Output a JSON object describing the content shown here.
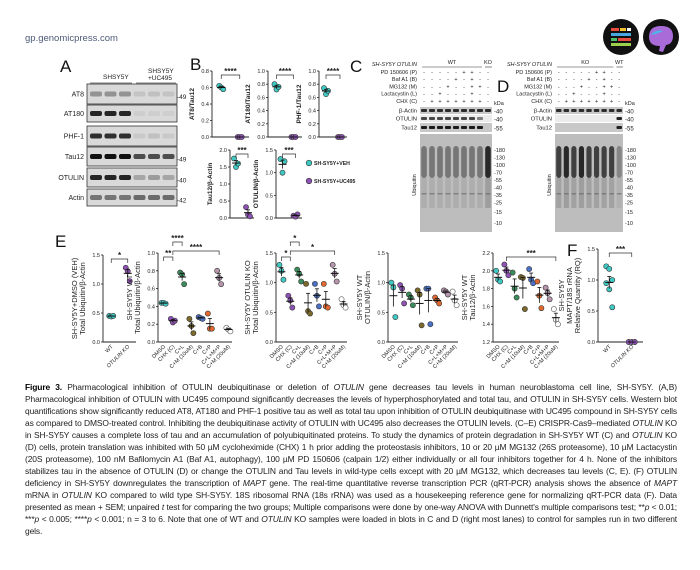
{
  "header": {
    "site": "gp.genomicpress.com",
    "logos": [
      "journal-logo-icon",
      "brain-logo-icon"
    ]
  },
  "colors": {
    "veh": "#3fc9c3",
    "uc495": "#8e52b5",
    "groups": [
      "#3fc9c3",
      "#8e52b5",
      "#3b8d5c",
      "#7b6a2b",
      "#4b70c4",
      "#e2682f",
      "#b695ad",
      "#ffffff"
    ]
  },
  "panel_a": {
    "label": "A",
    "groups": [
      "SHSY5Y",
      "SHSY5Y\n+UC495"
    ],
    "rows": [
      {
        "name": "AT8",
        "mw": "49"
      },
      {
        "name": "AT180",
        "mw": ""
      },
      {
        "name": "PHF-1",
        "mw": ""
      },
      {
        "name": "Tau12",
        "mw": "49"
      },
      {
        "name": "OTULIN",
        "mw": "40"
      },
      {
        "name": "Actin",
        "mw": "42"
      }
    ]
  },
  "panel_c": {
    "label": "C",
    "line": "SH-SY5Y OTULIN",
    "group_main": "WT",
    "group_ctrl": "KO",
    "treatments": [
      {
        "name": "PD 150606 (P)",
        "signs": [
          "-",
          "-",
          "-",
          "-",
          "-",
          "+",
          "+",
          "-",
          "-"
        ]
      },
      {
        "name": "Baf A1 (B)",
        "signs": [
          "-",
          "-",
          "-",
          "-",
          "+",
          "-",
          "+",
          "-",
          "-"
        ]
      },
      {
        "name": "MG132 (M)",
        "signs": [
          "-",
          "-",
          "-",
          "+",
          "-",
          "-",
          "+",
          "+",
          "-"
        ]
      },
      {
        "name": "Lactacystin (L)",
        "signs": [
          "-",
          "-",
          "+",
          "-",
          "-",
          "-",
          "+",
          "-",
          "-"
        ]
      },
      {
        "name": "CHX (C)",
        "signs": [
          "-",
          "+",
          "+",
          "+",
          "+",
          "+",
          "+",
          "+",
          "-"
        ]
      }
    ],
    "kda": "kDa",
    "rows": [
      {
        "name": "β-Actin",
        "mw": "40"
      },
      {
        "name": "OTULIN",
        "mw": "40"
      },
      {
        "name": "Tau12",
        "mw": "55"
      }
    ],
    "ubiquitin_label": "Ubiquitin",
    "ubiquitin_mw": [
      "180",
      "130",
      "100",
      "70",
      "55",
      "40",
      "35",
      "25",
      "15",
      "10"
    ]
  },
  "panel_d": {
    "label": "D",
    "line": "SH-SY5Y OTULIN",
    "group_main": "KO",
    "group_ctrl": "WT",
    "treatments": [
      {
        "name": "PD 150606 (P)",
        "signs": [
          "-",
          "-",
          "-",
          "-",
          "-",
          "+",
          "+",
          "-",
          "-"
        ]
      },
      {
        "name": "Baf A1 (B)",
        "signs": [
          "-",
          "-",
          "-",
          "-",
          "+",
          "-",
          "+",
          "-",
          "-"
        ]
      },
      {
        "name": "MG132 (M)",
        "signs": [
          "-",
          "-",
          "-",
          "+",
          "-",
          "-",
          "+",
          "+",
          "-"
        ]
      },
      {
        "name": "Lactacystin (L)",
        "signs": [
          "-",
          "-",
          "+",
          "-",
          "-",
          "-",
          "+",
          "-",
          "-"
        ]
      },
      {
        "name": "CHX (C)",
        "signs": [
          "-",
          "+",
          "+",
          "+",
          "+",
          "+",
          "+",
          "+",
          "-"
        ]
      }
    ],
    "kda": "kDa",
    "rows": [
      {
        "name": "β-Actin",
        "mw": "40"
      },
      {
        "name": "OTULIN",
        "mw": "40"
      },
      {
        "name": "Tau12",
        "mw": "55"
      }
    ],
    "ubiquitin_label": "Ubiquitin",
    "ubiquitin_mw": [
      "180",
      "130",
      "100",
      "70",
      "55",
      "40",
      "35",
      "25",
      "15",
      "10"
    ]
  },
  "panel_labels": {
    "B": "B",
    "E": "E",
    "F": "F"
  },
  "legend_b": [
    {
      "label": "SH-SY5Y+VEH",
      "color": "#3fc9c3"
    },
    {
      "label": "SH-SY5Y+UC495",
      "color": "#8e52b5"
    }
  ],
  "chart_data": [
    {
      "id": "B1",
      "type": "scatter",
      "ylabel": [
        "AT8/Tau12"
      ],
      "ylim": [
        0,
        0.8
      ],
      "yticks": [
        "0.0",
        "0.2",
        "0.4",
        "0.6",
        "0.8"
      ],
      "categories": [],
      "groups": [
        {
          "points": [
            0.62,
            0.6,
            0.58
          ],
          "color": 0
        },
        {
          "points": [
            0,
            0,
            0
          ],
          "color": 1
        }
      ],
      "sig": [
        {
          "a": 0,
          "b": 1,
          "text": "****"
        }
      ]
    },
    {
      "id": "B2",
      "type": "scatter",
      "ylabel": [
        "AT180/Tau12"
      ],
      "ylim": [
        0,
        1.0
      ],
      "yticks": [
        "0.0",
        "0.2",
        "0.4",
        "0.6",
        "0.8",
        "1.0"
      ],
      "categories": [],
      "groups": [
        {
          "points": [
            0.8,
            0.72,
            0.76
          ],
          "color": 0
        },
        {
          "points": [
            0,
            0,
            0
          ],
          "color": 1
        }
      ],
      "sig": [
        {
          "a": 0,
          "b": 1,
          "text": "****"
        }
      ]
    },
    {
      "id": "B3",
      "type": "scatter",
      "ylabel": [
        "PHF-1/Tau12"
      ],
      "ylim": [
        0,
        1.0
      ],
      "yticks": [
        "0.0",
        "0.2",
        "0.4",
        "0.6",
        "0.8",
        "1.0"
      ],
      "categories": [],
      "groups": [
        {
          "points": [
            0.74,
            0.65,
            0.7
          ],
          "color": 0
        },
        {
          "points": [
            0,
            0,
            0
          ],
          "color": 1
        }
      ],
      "sig": [
        {
          "a": 0,
          "b": 1,
          "text": "****"
        }
      ]
    },
    {
      "id": "B4",
      "type": "scatter",
      "ylabel": [
        "Tau12/β-Actin"
      ],
      "ylim": [
        0,
        2.0
      ],
      "yticks": [
        "0.0",
        "0.5",
        "1.0",
        "1.5",
        "2.0"
      ],
      "categories": [],
      "groups": [
        {
          "points": [
            1.75,
            1.5,
            1.6
          ],
          "color": 0
        },
        {
          "points": [
            0.32,
            0.1,
            0.05
          ],
          "color": 1
        }
      ],
      "sig": [
        {
          "a": 0,
          "b": 1,
          "text": "***"
        }
      ]
    },
    {
      "id": "B5",
      "type": "scatter",
      "ylabel": [
        "OTULIN/β-Actin"
      ],
      "ylim": [
        0,
        1.5
      ],
      "yticks": [
        "0.0",
        "0.5",
        "1.0",
        "1.5"
      ],
      "categories": [],
      "groups": [
        {
          "points": [
            1.3,
            1.0,
            1.25
          ],
          "color": 0
        },
        {
          "points": [
            0.05,
            0.03,
            0.08
          ],
          "color": 1
        }
      ],
      "sig": [
        {
          "a": 0,
          "b": 1,
          "text": "***"
        }
      ]
    },
    {
      "id": "E1",
      "type": "scatter",
      "ylabel": [
        "SH-SY5Y+DMSO (VEH)",
        "Total Ubiquitin/β-Actin"
      ],
      "ylim": [
        0,
        1.5
      ],
      "yticks": [
        "0.0",
        "0.5",
        "1.0",
        "1.5"
      ],
      "categories": [
        "WT",
        "OTULIN KO"
      ],
      "groups": [
        {
          "points": [
            0.45,
            0.44,
            0.45
          ],
          "color": 0
        },
        {
          "points": [
            1.28,
            1.22,
            1.05
          ],
          "color": 1
        }
      ],
      "sig": [
        {
          "a": 0,
          "b": 1,
          "text": "*"
        }
      ]
    },
    {
      "id": "E2",
      "type": "scatter",
      "ylabel": [
        "SH-SY5Y WT",
        "Total Ubiquitin/β-Actin"
      ],
      "ylim": [
        0,
        1.0
      ],
      "yticks": [
        "0.0",
        "0.2",
        "0.4",
        "0.6",
        "0.8",
        "1.0"
      ],
      "categories": [
        "DMSO",
        "CHX (C)",
        "C+L",
        "C+M (10uM)",
        "C+B",
        "C+P",
        "C+L+M+P",
        "C+M (20uM)"
      ],
      "groups": [
        {
          "points": [
            0.44,
            0.44,
            0.43
          ],
          "color": 0
        },
        {
          "points": [
            0.26,
            0.22,
            0.24
          ],
          "color": 1
        },
        {
          "points": [
            0.78,
            0.76,
            0.65
          ],
          "color": 2
        },
        {
          "points": [
            0.26,
            0.18,
            0.1
          ],
          "color": 3
        },
        {
          "points": [
            0.28,
            0.27,
            0.26
          ],
          "color": 4
        },
        {
          "points": [
            0.32,
            0.15,
            0.15
          ],
          "color": 5
        },
        {
          "points": [
            0.8,
            0.72,
            0.65
          ],
          "color": 6
        },
        {
          "points": [
            0.16,
            0.14,
            0.12
          ],
          "color": 7
        }
      ],
      "sig": [
        {
          "a": 0,
          "b": 1,
          "text": "**"
        },
        {
          "a": 1,
          "b": 2,
          "text": "****"
        },
        {
          "a": 1,
          "b": 6,
          "text": "****"
        }
      ]
    },
    {
      "id": "E3",
      "type": "scatter",
      "ylabel": [
        "SH-SY5Y OTULIN KO",
        "Total Ubiquitin/β-Actin"
      ],
      "ylim": [
        0,
        1.5
      ],
      "yticks": [
        "0.0",
        "0.5",
        "1.0",
        "1.5"
      ],
      "categories": [
        "DMSO",
        "CHX (C)",
        "C+L",
        "C+M (10uM)",
        "C+B",
        "C+P",
        "C+L+M+P",
        "C+M (20uM)"
      ],
      "groups": [
        {
          "points": [
            1.3,
            1.2,
            1.05
          ],
          "color": 0
        },
        {
          "points": [
            0.78,
            0.7,
            0.58
          ],
          "color": 1
        },
        {
          "points": [
            1.22,
            1.15,
            1.02
          ],
          "color": 2
        },
        {
          "points": [
            0.98,
            0.52,
            0.48
          ],
          "color": 3
        },
        {
          "points": [
            0.98,
            0.78,
            0.6
          ],
          "color": 4
        },
        {
          "points": [
            0.98,
            0.6,
            0.58
          ],
          "color": 5
        },
        {
          "points": [
            1.3,
            1.15,
            1.02
          ],
          "color": 6
        },
        {
          "points": [
            0.72,
            0.62,
            0.58
          ],
          "color": 7
        }
      ],
      "sig": [
        {
          "a": 0,
          "b": 1,
          "text": "*"
        },
        {
          "a": 1,
          "b": 2,
          "text": "*"
        },
        {
          "a": 1,
          "b": 6,
          "text": "*"
        }
      ]
    },
    {
      "id": "E4",
      "type": "scatter",
      "ylabel": [
        "SH-SY5Y WT",
        "OTULIN/β-Actin"
      ],
      "ylim": [
        0,
        1.5
      ],
      "yticks": [
        "0.0",
        "0.5",
        "1.0",
        "1.5"
      ],
      "categories": [
        "DMSO",
        "CHX (C)",
        "C+L",
        "C+M (10uM)",
        "C+B",
        "C+P",
        "C+L+M+P",
        "C+M (20uM)"
      ],
      "groups": [
        {
          "points": [
            1.0,
            0.92,
            0.42
          ],
          "color": 0
        },
        {
          "points": [
            0.96,
            0.9,
            0.65
          ],
          "color": 1
        },
        {
          "points": [
            0.8,
            0.75,
            0.62
          ],
          "color": 2
        },
        {
          "points": [
            0.87,
            0.8,
            0.28
          ],
          "color": 3
        },
        {
          "points": [
            0.9,
            0.9,
            0.3
          ],
          "color": 4
        },
        {
          "points": [
            0.75,
            0.7,
            0.65
          ],
          "color": 5
        },
        {
          "points": [
            0.87,
            0.85,
            0.8
          ],
          "color": 6
        },
        {
          "points": [
            0.85,
            0.7,
            0.62
          ],
          "color": 7
        }
      ],
      "sig": []
    },
    {
      "id": "E5",
      "type": "scatter",
      "ylabel": [
        "SH-SY5Y WT",
        "Tau12/β-Actin"
      ],
      "ylim": [
        1.2,
        2.2
      ],
      "yticks": [
        "1.2",
        "1.4",
        "1.6",
        "1.8",
        "2.0",
        "2.2"
      ],
      "categories": [
        "DMSO",
        "CHX (C)",
        "C+L",
        "C+M (10uM)",
        "C+B",
        "C+P",
        "C+L+M+P",
        "C+M (20uM)"
      ],
      "groups": [
        {
          "points": [
            2.0,
            1.9,
            1.88
          ],
          "color": 0
        },
        {
          "points": [
            2.07,
            2.0,
            1.95
          ],
          "color": 1
        },
        {
          "points": [
            1.98,
            1.8,
            1.7
          ],
          "color": 2
        },
        {
          "points": [
            1.93,
            1.92,
            1.57
          ],
          "color": 3
        },
        {
          "points": [
            2.02,
            1.9,
            1.86
          ],
          "color": 4
        },
        {
          "points": [
            1.88,
            1.72,
            1.58
          ],
          "color": 5
        },
        {
          "points": [
            1.81,
            1.75,
            1.68
          ],
          "color": 6
        },
        {
          "points": [
            1.57,
            1.45,
            1.4
          ],
          "color": 7
        }
      ],
      "sig": [
        {
          "a": 1,
          "b": 7,
          "text": "***"
        }
      ]
    },
    {
      "id": "F",
      "type": "scatter",
      "ylabel": [
        "SH-SY5Y",
        "MAPT/18S rRNA",
        "Relative Quantity (RQ)"
      ],
      "ylim": [
        0,
        1.5
      ],
      "yticks": [
        "0.0",
        "0.5",
        "1.0",
        "1.5"
      ],
      "categories": [
        "WT",
        "OTULIN KO"
      ],
      "groups": [
        {
          "points": [
            1.22,
            1.18,
            1.0,
            0.95,
            0.85,
            0.56
          ],
          "color": 0
        },
        {
          "points": [
            0,
            0,
            0,
            0,
            0,
            0
          ],
          "color": 1
        }
      ],
      "sig": [
        {
          "a": 0,
          "b": 1,
          "text": "***"
        }
      ]
    }
  ],
  "caption": [
    {
      "t": "Figure 3.",
      "s": "b"
    },
    {
      "t": " Pharmacological inhibition of OTULIN deubiquitinase or deletion of "
    },
    {
      "t": "OTULIN",
      "s": "i"
    },
    {
      "t": " gene decreases tau levels in human neuroblastoma cell line, SH-SY5Y. (A,B) Pharmacological inhibition of OTULIN with UC495 compound significantly decreases the levels of hyperphosphorylated and total tau, and OTULIN in SH-SY5Y cells. Western blot quantifications show significantly reduced AT8, AT180 and PHF-1 positive tau as well as total tau upon inhibition of OTULIN deubiquitinase with UC495 compound in SH-SY5Y cells as compared to DMSO-treated control. Inhibiting the deubiquitinase activity of OTULIN with UC495 also decreases the OTULIN levels. (C–E) CRISPR-Cas9–mediated "
    },
    {
      "t": "OTULIN",
      "s": "i"
    },
    {
      "t": " KO in SH-SY5Y causes a complete loss of tau and an accumulation of polyubiquitinated proteins. To study the dynamics of protein degradation in SH-SY5Y WT (C) and "
    },
    {
      "t": "OTULIN",
      "s": "i"
    },
    {
      "t": " KO (D) cells, protein translation was inhibited with 50 µM cycloheximide (CHX) 1 h prior adding the proteostasis inhibitors, 10 or 20 µM MG132 (26S proteasome), 10 µM Lactacystin (20S proteasome), 100 nM Bafilomycin A1 (Baf A1, autophagy), 100 µM PD 150606 (calpain 1/2) either individually or all four inhibitors together for 4 h. None of the inhibitors stabilizes tau in the absence of OTULIN (D) or change the OTULIN and Tau levels in wild-type cells except with 20 µM MG132, which decreases tau levels (C, E). (F) OTULIN deficiency in SH-SY5Y downregulates the transcription of "
    },
    {
      "t": "MAPT",
      "s": "i"
    },
    {
      "t": " gene. The real-time quantitative reverse transcription PCR (qRT-PCR) analysis shows the absence of "
    },
    {
      "t": "MAPT",
      "s": "i"
    },
    {
      "t": " mRNA in "
    },
    {
      "t": "OTULIN",
      "s": "i"
    },
    {
      "t": " KO compared to wild type SH-SY5Y. 18S ribosomal RNA (18s rRNA) was used as a housekeeping reference gene for normalizing qRT-PCR data (F). Data presented as mean + SEM; unpaired "
    },
    {
      "t": "t",
      "s": "i"
    },
    {
      "t": " test for comparing the two groups; Multiple comparisons were done by one-way ANOVA with Dunnett's multiple comparisons test; **"
    },
    {
      "t": "p",
      "s": "i"
    },
    {
      "t": " < 0.01; ***"
    },
    {
      "t": "p",
      "s": "i"
    },
    {
      "t": " < 0.005; ****"
    },
    {
      "t": "p",
      "s": "i"
    },
    {
      "t": " < 0.001; n = 3 to 6. Note that one of WT and "
    },
    {
      "t": "OTULIN",
      "s": "i"
    },
    {
      "t": " KO samples were loaded in blots in C and D (right most lanes) to control for samples run in two different gels."
    }
  ]
}
